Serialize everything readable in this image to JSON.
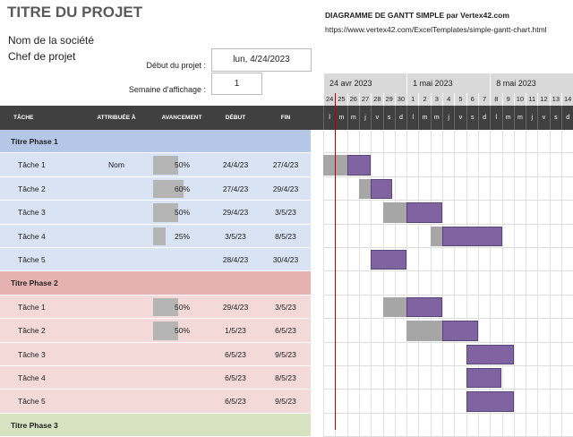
{
  "header": {
    "title": "TITRE DU PROJET",
    "company": "Nom de la société",
    "manager": "Chef de projet",
    "gantt_title": "DIAGRAMME DE GANTT SIMPLE par Vertex42.com",
    "url": "https://www.vertex42.com/ExcelTemplates/simple-gantt-chart.html",
    "start_label": "Début du projet :",
    "start_value": "lun, 4/24/2023",
    "week_label": "Semaine d'affichage :",
    "week_value": 1
  },
  "timeline": {
    "weeks": [
      "24 avr 2023",
      "1 mai 2023",
      "8 mai 2023"
    ],
    "days": [
      24,
      25,
      26,
      27,
      28,
      29,
      30,
      1,
      2,
      3,
      4,
      5,
      6,
      7,
      8,
      9,
      10,
      11,
      12,
      13,
      14
    ],
    "weekdays": [
      "l",
      "m",
      "m",
      "j",
      "v",
      "s",
      "d",
      "l",
      "m",
      "m",
      "j",
      "v",
      "s",
      "d",
      "l",
      "m",
      "m",
      "j",
      "v",
      "s",
      "d"
    ]
  },
  "table": {
    "columns": [
      "TÂCHE",
      "ATTRIBUÉE À",
      "AVANCEMENT",
      "DÉBUT",
      "FIN"
    ],
    "phases": [
      {
        "title": "Titre Phase 1",
        "tasks": [
          {
            "name": "Tâche 1",
            "assignee": "Nom",
            "progress": 50,
            "progress_label": "50%",
            "start": "24/4/23",
            "end": "27/4/23"
          },
          {
            "name": "Tâche 2",
            "progress": 60,
            "progress_label": "60%",
            "start": "27/4/23",
            "end": "29/4/23"
          },
          {
            "name": "Tâche 3",
            "progress": 50,
            "progress_label": "50%",
            "start": "29/4/23",
            "end": "3/5/23"
          },
          {
            "name": "Tâche 4",
            "progress": 25,
            "progress_label": "25%",
            "start": "3/5/23",
            "end": "8/5/23"
          },
          {
            "name": "Tâche 5",
            "start": "28/4/23",
            "end": "30/4/23"
          }
        ]
      },
      {
        "title": "Titre Phase 2",
        "tasks": [
          {
            "name": "Tâche 1",
            "progress": 50,
            "progress_label": "50%",
            "start": "29/4/23",
            "end": "3/5/23"
          },
          {
            "name": "Tâche 2",
            "progress": 50,
            "progress_label": "50%",
            "start": "1/5/23",
            "end": "6/5/23"
          },
          {
            "name": "Tâche 3",
            "start": "6/5/23",
            "end": "9/5/23"
          },
          {
            "name": "Tâche 4",
            "start": "6/5/23",
            "end": "8/5/23"
          },
          {
            "name": "Tâche 5",
            "start": "6/5/23",
            "end": "9/5/23"
          }
        ]
      },
      {
        "title": "Titre Phase 3",
        "tasks": []
      }
    ]
  }
}
